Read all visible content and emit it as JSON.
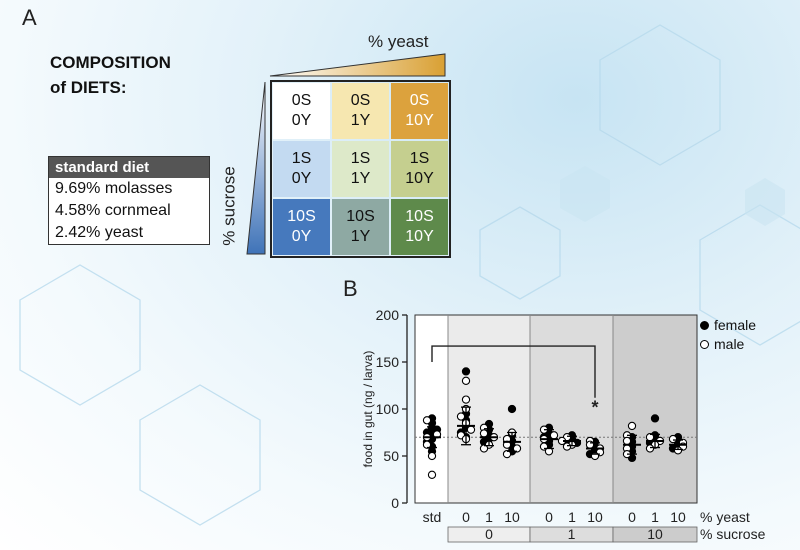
{
  "panel_a": {
    "letter": "A",
    "title_line1": "COMPOSITION",
    "title_line2": "of DIETS:",
    "standard_diet": {
      "heading": "standard diet",
      "items": [
        "9.69% molasses",
        "4.58% cornmeal",
        "2.42% yeast"
      ]
    },
    "yeast_axis_label": "% yeast",
    "sucrose_axis_label": "% sucrose",
    "grid": [
      [
        {
          "s": "0S",
          "y": "0Y",
          "color": "#ffffff",
          "dark": false
        },
        {
          "s": "0S",
          "y": "1Y",
          "color": "#f6e7b0",
          "dark": false
        },
        {
          "s": "0S",
          "y": "10Y",
          "color": "#dca23d",
          "dark": true
        }
      ],
      [
        {
          "s": "1S",
          "y": "0Y",
          "color": "#c3daf1",
          "dark": false
        },
        {
          "s": "1S",
          "y": "1Y",
          "color": "#dde9c9",
          "dark": false
        },
        {
          "s": "1S",
          "y": "10Y",
          "color": "#c5cf8f",
          "dark": false
        }
      ],
      [
        {
          "s": "10S",
          "y": "0Y",
          "color": "#4679bd",
          "dark": true
        },
        {
          "s": "10S",
          "y": "1Y",
          "color": "#8ea9a3",
          "dark": false
        },
        {
          "s": "10S",
          "y": "10Y",
          "color": "#5e8a4b",
          "dark": true
        }
      ]
    ]
  },
  "panel_b": {
    "letter": "B",
    "legend": [
      {
        "label": "female",
        "filled": true
      },
      {
        "label": "male",
        "filled": false
      }
    ],
    "significance_marker": "*"
  },
  "chart_data": {
    "type": "scatter",
    "ylabel": "food in gut (ng / larva)",
    "ylim": [
      0,
      200
    ],
    "yticks": [
      0,
      50,
      100,
      150,
      200
    ],
    "x_row_label": "% yeast",
    "group_row_label": "% sucrose",
    "dashed_reference_y": 70,
    "categories": [
      "std",
      "0",
      "1",
      "10",
      "0",
      "1",
      "10",
      "0",
      "1",
      "10"
    ],
    "groups": [
      {
        "label": "0",
        "members": [
          1,
          2,
          3
        ]
      },
      {
        "label": "1",
        "members": [
          4,
          5,
          6
        ]
      },
      {
        "label": "10",
        "members": [
          7,
          8,
          9
        ]
      }
    ],
    "comparison_bracket": {
      "from": "std",
      "to_index": 6,
      "marker": "*"
    },
    "series": [
      {
        "category": "std",
        "mean": 70,
        "sd": 11,
        "female": [
          90,
          85,
          80,
          75,
          72,
          68,
          65,
          60,
          55,
          78
        ],
        "male": [
          88,
          70,
          62,
          50,
          30,
          73
        ]
      },
      {
        "category": "0",
        "sucrose": "0",
        "mean": 82,
        "sd": 20,
        "female": [
          140,
          95,
          88,
          80,
          75,
          70
        ],
        "male": [
          130,
          110,
          100,
          92,
          85,
          78,
          72,
          68
        ]
      },
      {
        "category": "1",
        "sucrose": "0",
        "mean": 70,
        "sd": 9,
        "female": [
          84,
          78,
          72,
          68,
          65
        ],
        "male": [
          80,
          74,
          70,
          62,
          58
        ]
      },
      {
        "category": "10",
        "sucrose": "0",
        "mean": 65,
        "sd": 10,
        "female": [
          100,
          72,
          66,
          60,
          55
        ],
        "male": [
          75,
          68,
          62,
          58,
          52
        ]
      },
      {
        "category": "0",
        "sucrose": "1",
        "mean": 68,
        "sd": 10,
        "female": [
          80,
          74,
          70,
          66,
          62
        ],
        "male": [
          78,
          72,
          68,
          60,
          55
        ]
      },
      {
        "category": "1",
        "sucrose": "1",
        "mean": 66,
        "sd": 5,
        "female": [
          72,
          68,
          66,
          64
        ],
        "male": [
          70,
          66,
          62,
          60
        ]
      },
      {
        "category": "10",
        "sucrose": "1",
        "mean": 58,
        "sd": 6,
        "female": [
          65,
          60,
          56,
          52
        ],
        "male": [
          66,
          62,
          58,
          54,
          50
        ]
      },
      {
        "category": "0",
        "sucrose": "10",
        "mean": 62,
        "sd": 10,
        "female": [
          70,
          65,
          60,
          55,
          48
        ],
        "male": [
          82,
          72,
          66,
          58,
          52
        ]
      },
      {
        "category": "1",
        "sucrose": "10",
        "mean": 66,
        "sd": 7,
        "female": [
          90,
          72,
          68,
          64
        ],
        "male": [
          70,
          66,
          62,
          58
        ]
      },
      {
        "category": "10",
        "sucrose": "10",
        "mean": 62,
        "sd": 5,
        "female": [
          70,
          65,
          62,
          58
        ],
        "male": [
          68,
          64,
          60,
          56
        ]
      }
    ]
  }
}
